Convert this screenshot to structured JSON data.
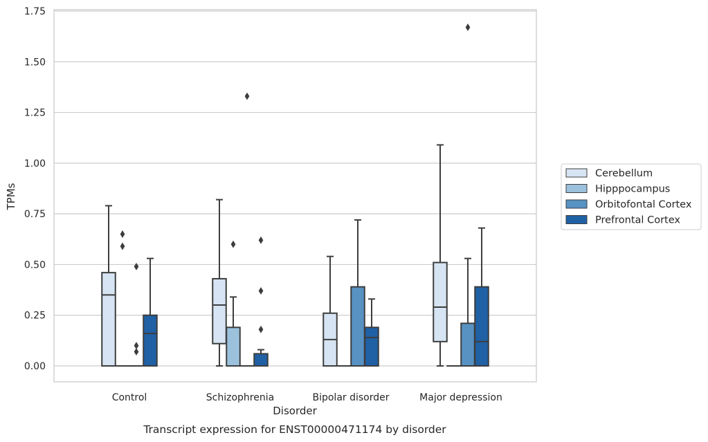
{
  "chart_data": {
    "type": "box",
    "xlabel": "Disorder",
    "ylabel": "TPMs",
    "caption": "Transcript expression for ENST00000471174 by disorder",
    "ylim": [
      -0.08,
      1.76
    ],
    "yticks": [
      "0.00",
      "0.25",
      "0.50",
      "0.75",
      "1.00",
      "1.25",
      "1.50",
      "1.75"
    ],
    "ytick_values": [
      0,
      0.25,
      0.5,
      0.75,
      1.0,
      1.25,
      1.5,
      1.75
    ],
    "grid": true,
    "legend_position": "right",
    "categories": [
      "Control",
      "Schizophrenia",
      "Bipolar disorder",
      "Major depression"
    ],
    "series": [
      {
        "name": "Cerebellum",
        "color": "#d6e4f3",
        "boxes": [
          {
            "min": 0,
            "q1": 0,
            "median": 0.35,
            "q3": 0.46,
            "max": 0.79,
            "outliers": []
          },
          {
            "min": 0,
            "q1": 0.11,
            "median": 0.3,
            "q3": 0.43,
            "max": 0.82,
            "outliers": []
          },
          {
            "min": 0,
            "q1": 0,
            "median": 0.13,
            "q3": 0.26,
            "max": 0.54,
            "outliers": []
          },
          {
            "min": 0,
            "q1": 0.12,
            "median": 0.29,
            "q3": 0.51,
            "max": 1.09,
            "outliers": []
          }
        ]
      },
      {
        "name": "Hipppocampus",
        "color": "#9bc1dc",
        "boxes": [
          {
            "min": 0,
            "q1": 0,
            "median": 0,
            "q3": 0,
            "max": 0,
            "outliers": [
              0.65,
              0.59
            ]
          },
          {
            "min": 0,
            "q1": 0,
            "median": 0,
            "q3": 0.19,
            "max": 0.34,
            "outliers": [
              0.6
            ]
          },
          {
            "min": 0,
            "q1": 0,
            "median": 0,
            "q3": 0,
            "max": 0,
            "outliers": []
          },
          {
            "min": 0,
            "q1": 0,
            "median": 0,
            "q3": 0,
            "max": 0,
            "outliers": []
          }
        ]
      },
      {
        "name": "Orbitofontal Cortex",
        "color": "#5792c3",
        "boxes": [
          {
            "min": 0,
            "q1": 0,
            "median": 0,
            "q3": 0,
            "max": 0,
            "outliers": [
              0.49,
              0.1,
              0.07
            ]
          },
          {
            "min": 0,
            "q1": 0,
            "median": 0,
            "q3": 0,
            "max": 0,
            "outliers": [
              1.33
            ]
          },
          {
            "min": 0,
            "q1": 0,
            "median": 0,
            "q3": 0.39,
            "max": 0.72,
            "outliers": []
          },
          {
            "min": 0,
            "q1": 0,
            "median": 0,
            "q3": 0.21,
            "max": 0.53,
            "outliers": [
              1.67
            ]
          }
        ]
      },
      {
        "name": "Prefrontal Cortex",
        "color": "#2060a4",
        "boxes": [
          {
            "min": 0,
            "q1": 0,
            "median": 0.16,
            "q3": 0.25,
            "max": 0.53,
            "outliers": []
          },
          {
            "min": 0,
            "q1": 0,
            "median": 0,
            "q3": 0.06,
            "max": 0.08,
            "outliers": [
              0.62,
              0.37,
              0.18
            ]
          },
          {
            "min": 0,
            "q1": 0,
            "median": 0.14,
            "q3": 0.19,
            "max": 0.33,
            "outliers": []
          },
          {
            "min": 0,
            "q1": 0,
            "median": 0.12,
            "q3": 0.39,
            "max": 0.68,
            "outliers": []
          }
        ]
      }
    ]
  }
}
